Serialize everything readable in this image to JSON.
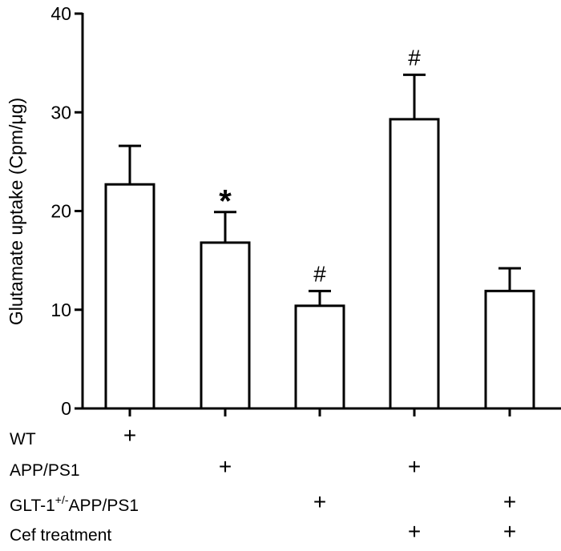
{
  "chart_data": {
    "type": "bar",
    "title": "",
    "ylabel": "Glutamate uptake (Cpm/μg)",
    "xlabel": "",
    "ylim": [
      0,
      40
    ],
    "yticks": [
      "0",
      "10",
      "20",
      "30",
      "40"
    ],
    "grid": false,
    "categories": [
      "WT",
      "APP/PS1",
      "GLT-1+/-APP/PS1",
      "APP/PS1 + Cef",
      "GLT-1+/-APP/PS1 + Cef"
    ],
    "values": [
      22.7,
      16.8,
      10.4,
      29.3,
      11.9
    ],
    "error_upper": [
      26.6,
      19.9,
      11.9,
      33.8,
      14.2
    ],
    "annotations": [
      "",
      "*",
      "#",
      "#",
      ""
    ],
    "condition_table": {
      "rows": [
        {
          "label": "WT",
          "sup": "",
          "label2": "",
          "marks": [
            "+",
            "",
            "",
            "",
            ""
          ]
        },
        {
          "label": "APP/PS1",
          "sup": "",
          "label2": "",
          "marks": [
            "",
            "+",
            "",
            "+",
            ""
          ]
        },
        {
          "label": "GLT-1",
          "sup": "+/-",
          "label2": "APP/PS1",
          "marks": [
            "",
            "",
            "+",
            "",
            "+"
          ]
        },
        {
          "label": "Cef treatment",
          "sup": "",
          "label2": "",
          "marks": [
            "",
            "",
            "",
            "+",
            "+"
          ]
        }
      ]
    }
  }
}
